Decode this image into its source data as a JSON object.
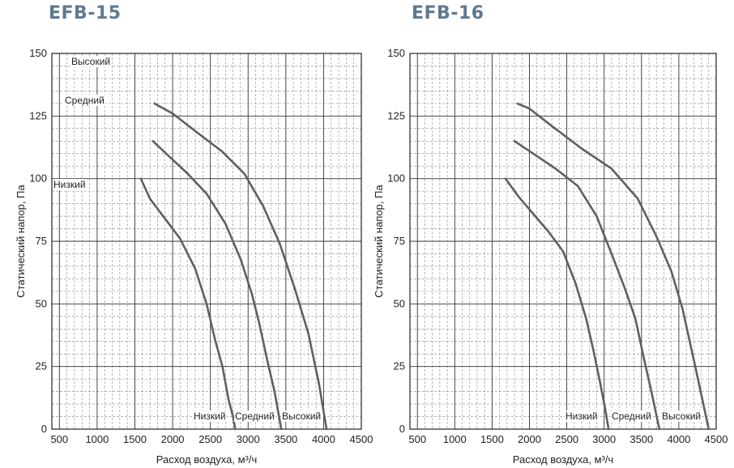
{
  "chart_data": [
    {
      "type": "line",
      "title": "EFB-15",
      "xlabel": "Расход воздуха, м³/ч",
      "ylabel": "Статический напор, Па",
      "xlim": [
        400,
        4500
      ],
      "ylim": [
        0,
        150
      ],
      "x_ticks": [
        "500",
        "1000",
        "1500",
        "2000",
        "2500",
        "3000",
        "3500",
        "4000",
        "4500"
      ],
      "y_ticks": [
        "0",
        "25",
        "50",
        "75",
        "100",
        "125",
        "150"
      ],
      "grid": true,
      "series": [
        {
          "name": "Низкий",
          "x": [
            1580,
            1700,
            1900,
            2100,
            2300,
            2450,
            2560,
            2660,
            2740,
            2800,
            2830
          ],
          "y": [
            100,
            92,
            84,
            76,
            64,
            50,
            36,
            25,
            12,
            5,
            0
          ]
        },
        {
          "name": "Средний",
          "x": [
            1740,
            1950,
            2200,
            2450,
            2700,
            2900,
            3050,
            3150,
            3250,
            3350,
            3440
          ],
          "y": [
            115,
            109,
            102,
            94,
            82,
            68,
            54,
            42,
            28,
            15,
            0
          ]
        },
        {
          "name": "Высокий",
          "x": [
            1760,
            2000,
            2300,
            2650,
            2950,
            3200,
            3420,
            3620,
            3800,
            3940,
            4040
          ],
          "y": [
            130,
            126,
            119,
            111,
            102,
            89,
            74,
            56,
            38,
            18,
            0
          ]
        }
      ],
      "annotations": [
        "Высокий",
        "Средний",
        "Низкий",
        "Низкий",
        "Средний",
        "Высокий"
      ]
    },
    {
      "type": "line",
      "title": "EFB-16",
      "xlabel": "Расход воздуха, м³/ч",
      "ylabel": "Статический напор, Па",
      "xlim": [
        400,
        4500
      ],
      "ylim": [
        0,
        150
      ],
      "x_ticks": [
        "500",
        "1000",
        "1500",
        "2000",
        "2500",
        "3000",
        "3500",
        "4000",
        "4500"
      ],
      "y_ticks": [
        "0",
        "25",
        "50",
        "75",
        "100",
        "125",
        "150"
      ],
      "grid": true,
      "series": [
        {
          "name": "Низкий",
          "x": [
            1680,
            1850,
            2050,
            2250,
            2450,
            2620,
            2760,
            2860,
            2950,
            3020,
            3060
          ],
          "y": [
            100,
            93,
            86,
            79,
            71,
            58,
            44,
            31,
            18,
            7,
            0
          ]
        },
        {
          "name": "Средний",
          "x": [
            1800,
            2050,
            2350,
            2650,
            2900,
            3100,
            3280,
            3420,
            3520,
            3640,
            3740
          ],
          "y": [
            115,
            110,
            104,
            97,
            85,
            70,
            56,
            44,
            30,
            14,
            0
          ]
        },
        {
          "name": "Высокий",
          "x": [
            1840,
            2000,
            2300,
            2700,
            3100,
            3450,
            3700,
            3900,
            4050,
            4220,
            4400
          ],
          "y": [
            130,
            128,
            121,
            112,
            104,
            92,
            77,
            63,
            48,
            25,
            0
          ]
        }
      ],
      "annotations": [
        "Низкий",
        "Средний",
        "Высокий"
      ]
    }
  ]
}
